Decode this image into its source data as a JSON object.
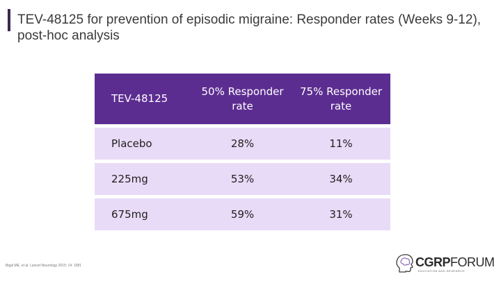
{
  "slide": {
    "title": "TEV-48125 for prevention of episodic migraine: Responder rates (Weeks 9-12), post-hoc analysis",
    "footnote": "Bigal ME, et al. Lancet Neurology 2015; 14: 1081"
  },
  "table": {
    "headers": [
      "TEV-48125",
      "50% Responder rate",
      "75% Responder rate"
    ],
    "rows": [
      [
        "Placebo",
        "28%",
        "11%"
      ],
      [
        "225mg",
        "53%",
        "34%"
      ],
      [
        "675mg",
        "59%",
        "31%"
      ]
    ]
  },
  "logo": {
    "word_bold": "CGRP",
    "word_thin": "FORUM",
    "subtitle": "EDUCATION AND RESEARCH"
  },
  "colors": {
    "header_bg": "#5c2d91",
    "row_bg": "#e8dbf7",
    "title_accent": "#3b2a4d"
  },
  "icons": [
    "head-brain-logo-icon"
  ]
}
